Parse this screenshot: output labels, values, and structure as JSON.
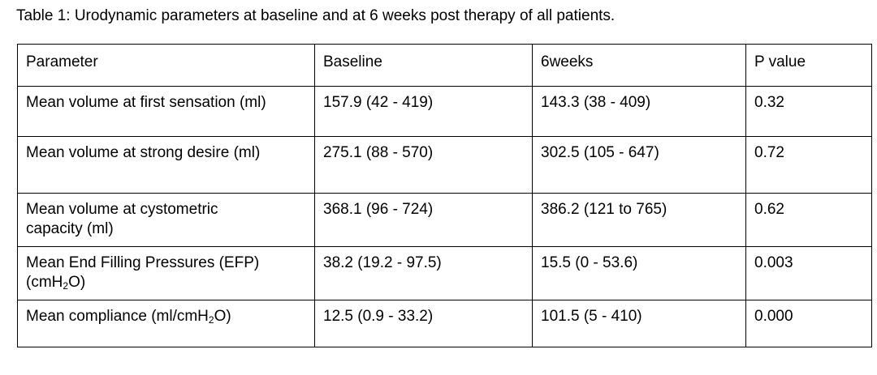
{
  "caption": "Table 1: Urodynamic parameters at baseline and at 6 weeks post therapy of all patients.",
  "table": {
    "headers": {
      "parameter": "Parameter",
      "baseline": "Baseline",
      "six_weeks": "6weeks",
      "p_value": "P value"
    },
    "rows": [
      {
        "parameter_line1": "Mean volume at first sensation (ml)",
        "baseline": "157.9 (42 - 419)",
        "six_weeks": "143.3 (38 - 409)",
        "p_value": "0.32"
      },
      {
        "parameter_line1": "Mean volume at strong desire (ml)",
        "baseline": "275.1 (88 - 570)",
        "six_weeks": "302.5 (105 - 647)",
        "p_value": "0.72"
      },
      {
        "parameter_line1": "Mean volume at cystometric",
        "parameter_line2": "capacity (ml)",
        "baseline": "368.1 (96 - 724)",
        "six_weeks": "386.2 (121 to 765)",
        "p_value": "0.62"
      },
      {
        "parameter_line1": "Mean End Filling Pressures (EFP)",
        "unit_prefix": "(cmH",
        "unit_sub": "2",
        "unit_suffix": "O)",
        "baseline": "38.2 (19.2 - 97.5)",
        "six_weeks": "15.5 (0 - 53.6)",
        "p_value": "0.003"
      },
      {
        "label_prefix": "Mean compliance (ml/cmH",
        "label_sub": "2",
        "label_suffix": "O)",
        "baseline": "12.5 (0.9 - 33.2)",
        "six_weeks": "101.5 (5 - 410)",
        "p_value": "0.000"
      }
    ]
  }
}
